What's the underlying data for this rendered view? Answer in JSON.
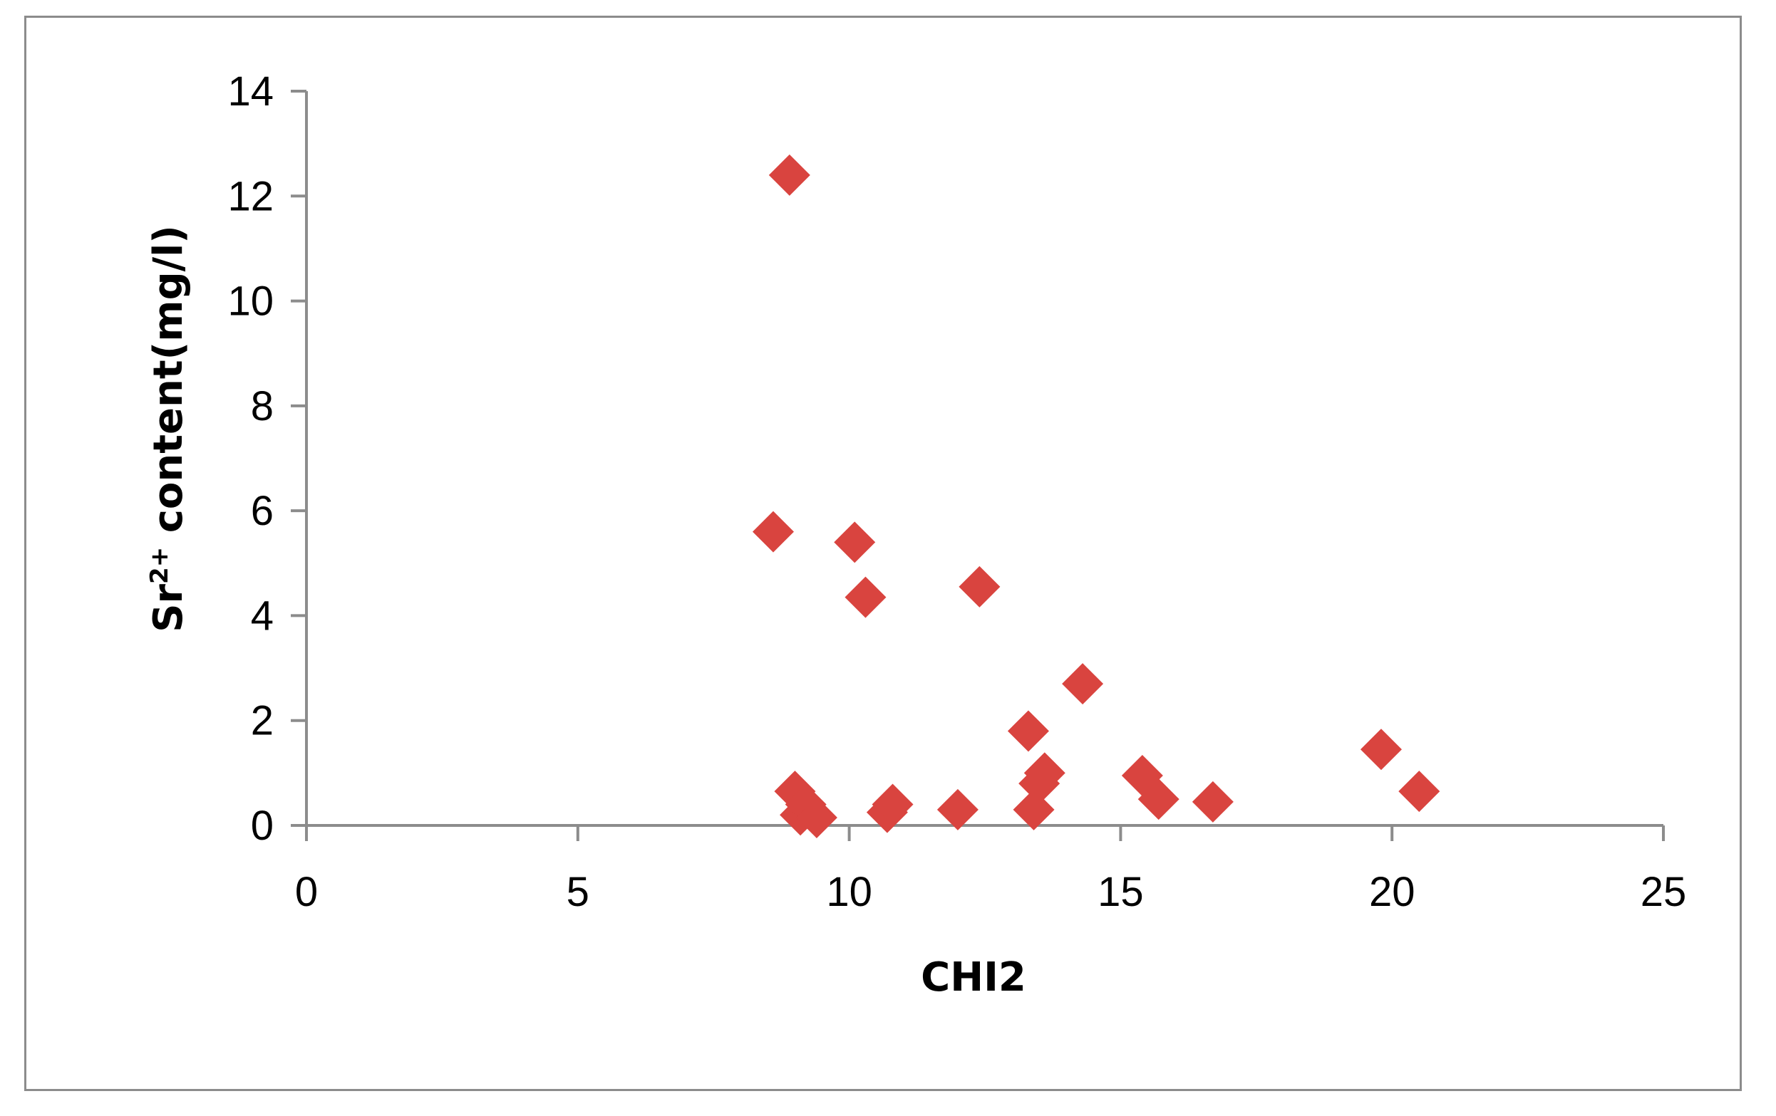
{
  "chart_data": {
    "type": "scatter",
    "title": "",
    "xlabel": "CHI2",
    "ylabel_parts": {
      "base": "Sr",
      "superscript": "2+",
      "rest": " content(mg/l)"
    },
    "xlim": [
      0,
      25
    ],
    "ylim": [
      0,
      14
    ],
    "xticks": [
      "0",
      "5",
      "10",
      "15",
      "20",
      "25"
    ],
    "yticks": [
      "0",
      "2",
      "4",
      "6",
      "8",
      "10",
      "12",
      "14"
    ],
    "marker": "diamond",
    "marker_color": "#d9443f",
    "axis_color": "#8c8c8c",
    "grid": false,
    "legend": "none",
    "points": [
      {
        "x": 8.9,
        "y": 12.4
      },
      {
        "x": 8.6,
        "y": 5.6
      },
      {
        "x": 10.1,
        "y": 5.4
      },
      {
        "x": 10.3,
        "y": 4.35
      },
      {
        "x": 12.4,
        "y": 4.55
      },
      {
        "x": 14.3,
        "y": 2.7
      },
      {
        "x": 13.3,
        "y": 1.8
      },
      {
        "x": 19.8,
        "y": 1.45
      },
      {
        "x": 20.5,
        "y": 0.65
      },
      {
        "x": 9.0,
        "y": 0.65
      },
      {
        "x": 9.1,
        "y": 0.2
      },
      {
        "x": 9.2,
        "y": 0.4
      },
      {
        "x": 9.4,
        "y": 0.15
      },
      {
        "x": 10.7,
        "y": 0.25
      },
      {
        "x": 10.8,
        "y": 0.4
      },
      {
        "x": 12.0,
        "y": 0.3
      },
      {
        "x": 13.4,
        "y": 0.3
      },
      {
        "x": 13.5,
        "y": 0.8
      },
      {
        "x": 13.6,
        "y": 1.0
      },
      {
        "x": 15.4,
        "y": 0.95
      },
      {
        "x": 15.7,
        "y": 0.5
      },
      {
        "x": 16.7,
        "y": 0.45
      }
    ]
  }
}
